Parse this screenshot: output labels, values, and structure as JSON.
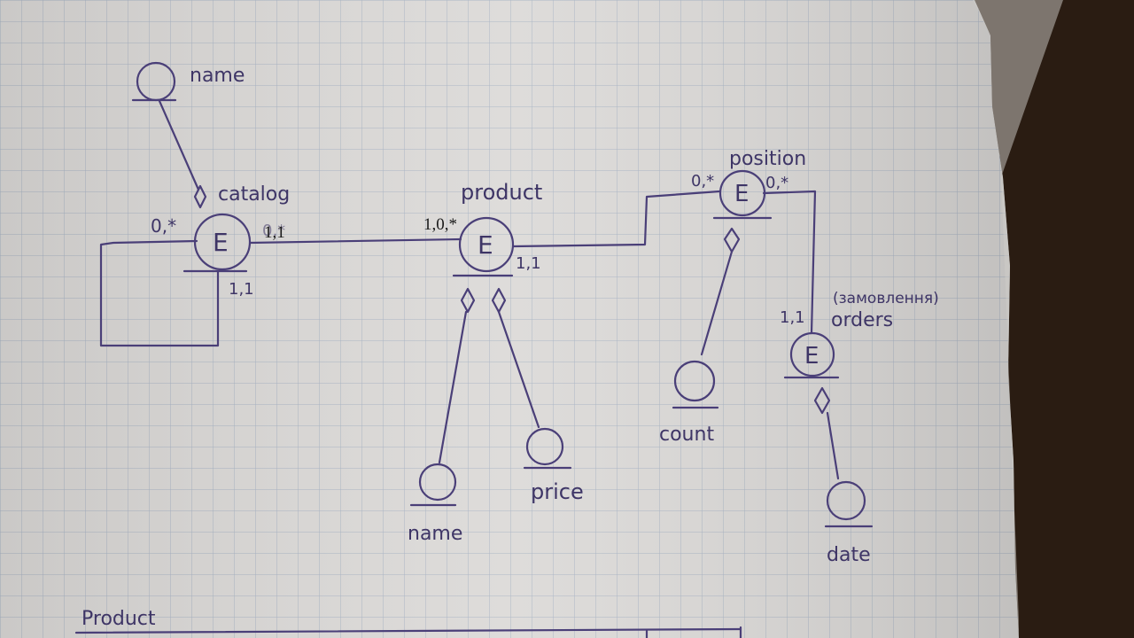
{
  "colors": {
    "paper": "#dcdad8",
    "grid": "#a9b4c4",
    "ink": "#4a3f78",
    "desk": "#2a1c12"
  },
  "entities": [
    {
      "id": "catalog",
      "symbol": "E",
      "label": "catalog"
    },
    {
      "id": "product",
      "symbol": "E",
      "label": "product"
    },
    {
      "id": "position",
      "symbol": "E",
      "label": "position"
    },
    {
      "id": "orders",
      "symbol": "E",
      "label": "orders",
      "note": "(замовлення)"
    }
  ],
  "attributes": {
    "catalog_name": "name",
    "product_name": "name",
    "product_price": "price",
    "position_count": "count",
    "orders_date": "date"
  },
  "cardinalities": {
    "catalog_self": "0,*",
    "catalog_product_handwritten": "0,*",
    "catalog_product_typed": "1,1",
    "catalog_self_bottom": "1,1",
    "product_catalog_typed": "1,0,*",
    "product_position": "1,1",
    "position_product": "0,*",
    "position_orders": "0,*",
    "orders_position": "1,1"
  },
  "footer": {
    "table_title": "Product"
  }
}
